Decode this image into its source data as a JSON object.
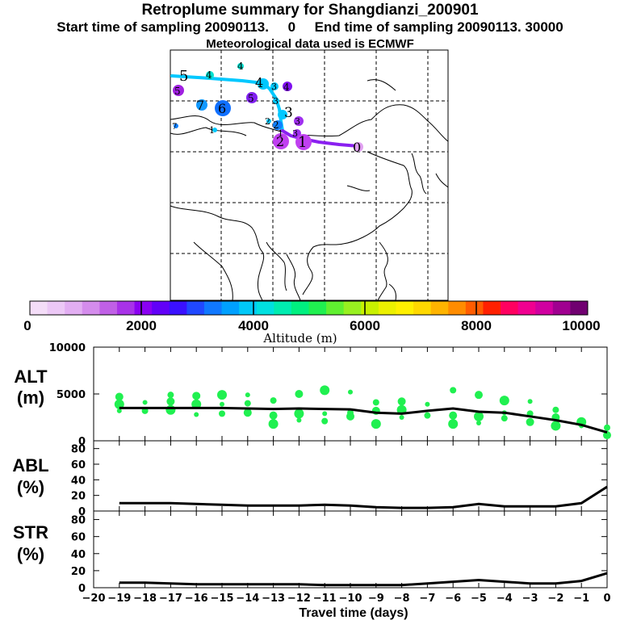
{
  "header": {
    "title": "Retroplume summary for Shangdianzi_200901",
    "subtitle": "Start time of sampling 20090113.     0     End time of sampling 20090113. 30000",
    "met": "Meteorological data used is ECMWF"
  },
  "colorbar": {
    "tick_labels": [
      "0",
      "2000",
      "4000",
      "6000",
      "8000",
      "10000"
    ],
    "label": "Altitude  (m)",
    "colors": [
      "#f4ddf8",
      "#ecc8f6",
      "#e2aef2",
      "#d48cec",
      "#c060e6",
      "#a832e8",
      "#8a00f2",
      "#6200f8",
      "#3a10ff",
      "#2048ff",
      "#1078ff",
      "#00a0ff",
      "#00c8f8",
      "#00e0e0",
      "#00ecb0",
      "#00f080",
      "#20f050",
      "#60f030",
      "#98f020",
      "#c8f000",
      "#ecf000",
      "#fff000",
      "#ffd800",
      "#ffb400",
      "#ff8c00",
      "#ff5c00",
      "#ff2000",
      "#ff0060",
      "#f00090",
      "#d000a0",
      "#a00090",
      "#700070"
    ]
  },
  "map": {
    "cluster_labels": [
      {
        "t": "5",
        "color": "#00d8ff",
        "big": true
      },
      {
        "t": "4",
        "color": "#00e0d0",
        "big": false
      },
      {
        "t": "4",
        "color": "#00e0d0",
        "big": false
      },
      {
        "t": "5",
        "color": "#a020e0",
        "big": false
      },
      {
        "t": "7",
        "color": "#1098ff",
        "big": true
      },
      {
        "t": "6",
        "color": "#1070ff",
        "big": true
      },
      {
        "t": "5",
        "color": "#8020f0",
        "big": false
      },
      {
        "t": "4",
        "color": "#00c8ff",
        "big": true
      },
      {
        "t": "3",
        "color": "#00c8ff",
        "big": false
      },
      {
        "t": "4",
        "color": "#8010f0",
        "big": false
      },
      {
        "t": "3",
        "color": "#00c8ff",
        "big": false
      },
      {
        "t": "3",
        "color": "#00c8ff",
        "big": true
      },
      {
        "t": "2",
        "color": "#00c8ff",
        "big": false
      },
      {
        "t": "2",
        "color": "#00a8ff",
        "big": false
      },
      {
        "t": "3",
        "color": "#a030f0",
        "big": false
      },
      {
        "t": "3",
        "color": "#a030f0",
        "big": false
      },
      {
        "t": "1",
        "color": "#1080ff",
        "big": false
      },
      {
        "t": "2",
        "color": "#c040f0",
        "big": true
      },
      {
        "t": "1",
        "color": "#c040f0",
        "big": true
      },
      {
        "t": "0",
        "color": "#e0a0f0",
        "big": true
      },
      {
        "t": "7",
        "color": "#1080ff",
        "big": false
      },
      {
        "t": "1",
        "color": "#00c8ff",
        "big": false
      }
    ]
  },
  "chart_data": [
    {
      "type": "line",
      "name": "ALT",
      "ylabel": "ALT\n(m)",
      "x": [
        -19,
        -18,
        -17,
        -16,
        -15,
        -14,
        -13,
        -12,
        -11,
        -10,
        -9,
        -8,
        -7,
        -6,
        -5,
        -4,
        -3,
        -2,
        -1,
        0
      ],
      "values": [
        3500,
        3500,
        3500,
        3500,
        3500,
        3450,
        3400,
        3450,
        3400,
        3350,
        3000,
        2900,
        3200,
        3450,
        3100,
        3000,
        2600,
        2200,
        1700,
        900
      ],
      "xlim": [
        -20,
        0
      ],
      "ylim": [
        0,
        10000
      ],
      "yticks": [
        0,
        5000,
        10000
      ],
      "scatter": [
        [
          -19,
          3200
        ],
        [
          -19,
          3900
        ],
        [
          -19,
          4700
        ],
        [
          -18,
          3200
        ],
        [
          -18,
          4100
        ],
        [
          -17,
          3300
        ],
        [
          -17,
          4200
        ],
        [
          -17,
          4900
        ],
        [
          -16,
          2800
        ],
        [
          -16,
          3900
        ],
        [
          -16,
          4800
        ],
        [
          -15,
          2900
        ],
        [
          -15,
          3900
        ],
        [
          -15,
          4900
        ],
        [
          -14,
          3000
        ],
        [
          -14,
          4000
        ],
        [
          -14,
          4900
        ],
        [
          -13,
          1800
        ],
        [
          -13,
          2700
        ],
        [
          -13,
          4300
        ],
        [
          -12,
          2200
        ],
        [
          -12,
          2900
        ],
        [
          -12,
          5000
        ],
        [
          -11,
          2100
        ],
        [
          -11,
          2900
        ],
        [
          -11,
          5400
        ],
        [
          -10,
          2600
        ],
        [
          -10,
          3000
        ],
        [
          -10,
          5200
        ],
        [
          -9,
          1800
        ],
        [
          -9,
          3200
        ],
        [
          -9,
          4100
        ],
        [
          -8,
          2500
        ],
        [
          -8,
          3300
        ],
        [
          -8,
          4200
        ],
        [
          -7,
          2700
        ],
        [
          -7,
          3900
        ],
        [
          -6,
          1800
        ],
        [
          -6,
          2700
        ],
        [
          -6,
          5400
        ],
        [
          -5,
          1900
        ],
        [
          -5,
          2600
        ],
        [
          -5,
          4900
        ],
        [
          -4,
          2400
        ],
        [
          -4,
          3000
        ],
        [
          -4,
          4300
        ],
        [
          -3,
          2000
        ],
        [
          -3,
          2900
        ],
        [
          -3,
          4200
        ],
        [
          -2,
          1600
        ],
        [
          -2,
          2500
        ],
        [
          -2,
          3300
        ],
        [
          -1,
          1600
        ],
        [
          -1,
          2000
        ],
        [
          0,
          600
        ],
        [
          0,
          1400
        ]
      ]
    },
    {
      "type": "line",
      "name": "ABL",
      "ylabel": "ABL\n(%)",
      "x": [
        -19,
        -18,
        -17,
        -16,
        -15,
        -14,
        -13,
        -12,
        -11,
        -10,
        -9,
        -8,
        -7,
        -6,
        -5,
        -4,
        -3,
        -2,
        -1,
        0
      ],
      "values": [
        10,
        10,
        10,
        9,
        8,
        7,
        7,
        7,
        8,
        7,
        5,
        4,
        4,
        5,
        9,
        6,
        6,
        6,
        10,
        31
      ],
      "xlim": [
        -20,
        0
      ],
      "ylim": [
        0,
        90
      ],
      "yticks": [
        0,
        20,
        40,
        60,
        80
      ]
    },
    {
      "type": "line",
      "name": "STR",
      "ylabel": "STR\n(%)",
      "x": [
        -19,
        -18,
        -17,
        -16,
        -15,
        -14,
        -13,
        -12,
        -11,
        -10,
        -9,
        -8,
        -7,
        -6,
        -5,
        -4,
        -3,
        -2,
        -1,
        0
      ],
      "values": [
        6,
        6,
        5,
        4,
        4,
        4,
        4,
        4,
        3,
        3,
        3,
        3,
        5,
        7,
        9,
        7,
        5,
        5,
        8,
        17
      ],
      "xlim": [
        -20,
        0
      ],
      "ylim": [
        0,
        90
      ],
      "yticks": [
        0,
        20,
        40,
        60,
        80
      ],
      "xlabel": "Travel time (days)",
      "xticks": [
        "−20",
        "−19",
        "−18",
        "−17",
        "−16",
        "−15",
        "−14",
        "−13",
        "−12",
        "−11",
        "−10",
        "−9",
        "−8",
        "−7",
        "−6",
        "−5",
        "−4",
        "−3",
        "−2",
        "−1",
        "0"
      ]
    }
  ],
  "style": {
    "dot_color": "#20f050",
    "line_color": "#000000"
  }
}
